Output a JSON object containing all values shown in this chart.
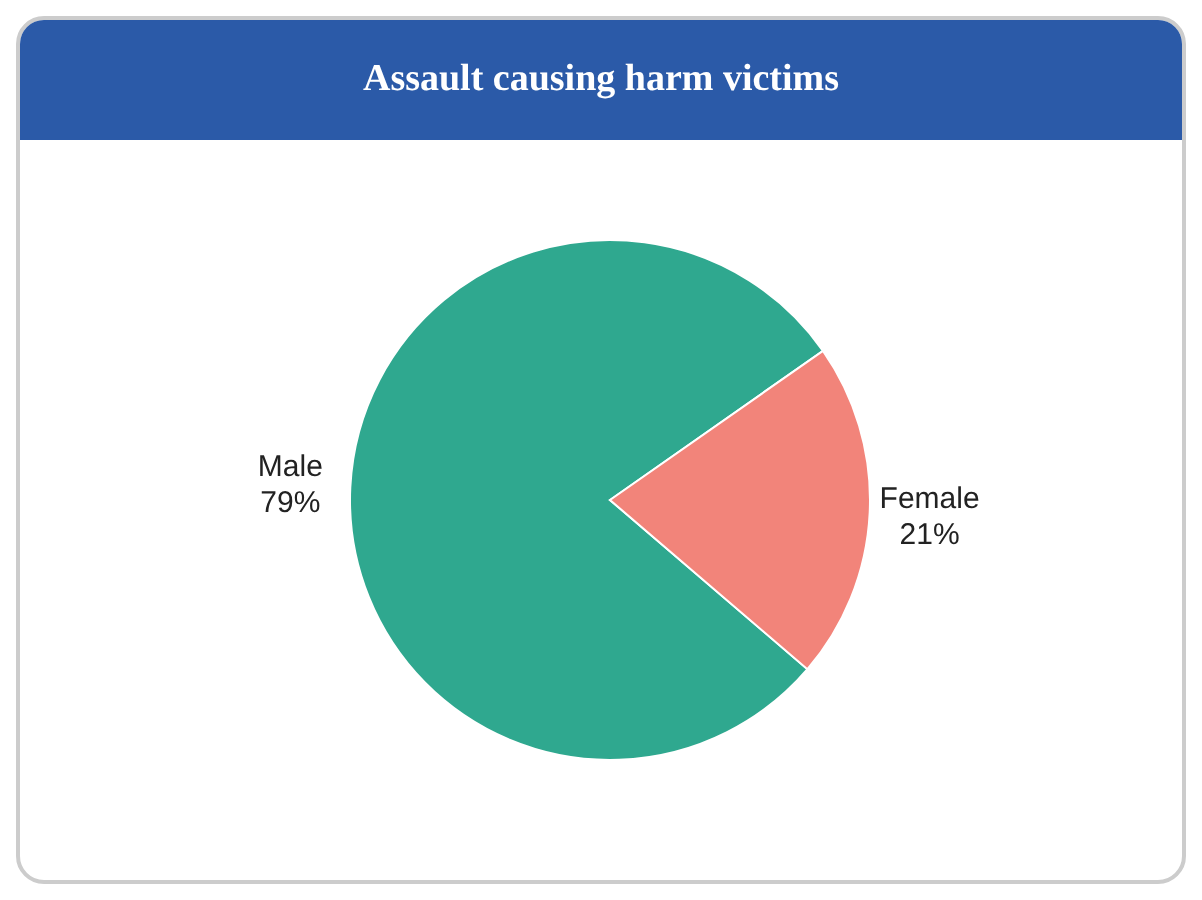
{
  "chart_data": {
    "type": "pie",
    "title": "Assault causing harm victims",
    "categories": [
      "Male",
      "Female"
    ],
    "values": [
      79,
      21
    ],
    "colors": [
      "#2fa88f",
      "#f2847a"
    ],
    "value_labels": [
      "79%",
      "21%"
    ],
    "legend": false
  }
}
